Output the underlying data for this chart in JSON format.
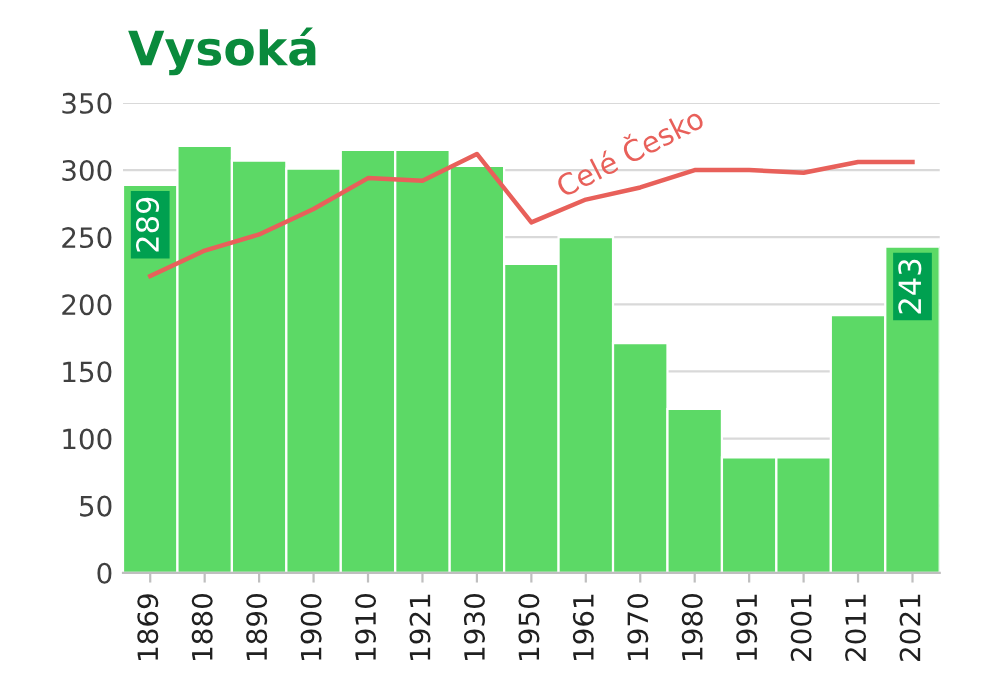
{
  "chart_data": {
    "type": "bar",
    "title": "Vysoká",
    "categories": [
      "1869",
      "1880",
      "1890",
      "1900",
      "1910",
      "1921",
      "1930",
      "1950",
      "1961",
      "1970",
      "1980",
      "1991",
      "2001",
      "2011",
      "2021"
    ],
    "series": [
      {
        "color": "#5cd966",
        "values": [
          289,
          318,
          307,
          301,
          315,
          315,
          303,
          230,
          250,
          171,
          122,
          86,
          86,
          192,
          243
        ],
        "value_labels": [
          "289",
          null,
          null,
          null,
          null,
          null,
          null,
          null,
          null,
          null,
          null,
          null,
          null,
          null,
          "243"
        ]
      },
      {
        "type": "line",
        "name": "Celé Česko",
        "color": "#e8605a",
        "values": [
          221,
          240,
          252,
          271,
          294,
          292,
          312,
          261,
          278,
          287,
          300,
          300,
          298,
          306,
          306
        ]
      }
    ],
    "ylim": [
      0,
      350
    ],
    "yticks": [
      0,
      50,
      100,
      150,
      200,
      250,
      300,
      350
    ],
    "grid": "y",
    "legend": false
  }
}
